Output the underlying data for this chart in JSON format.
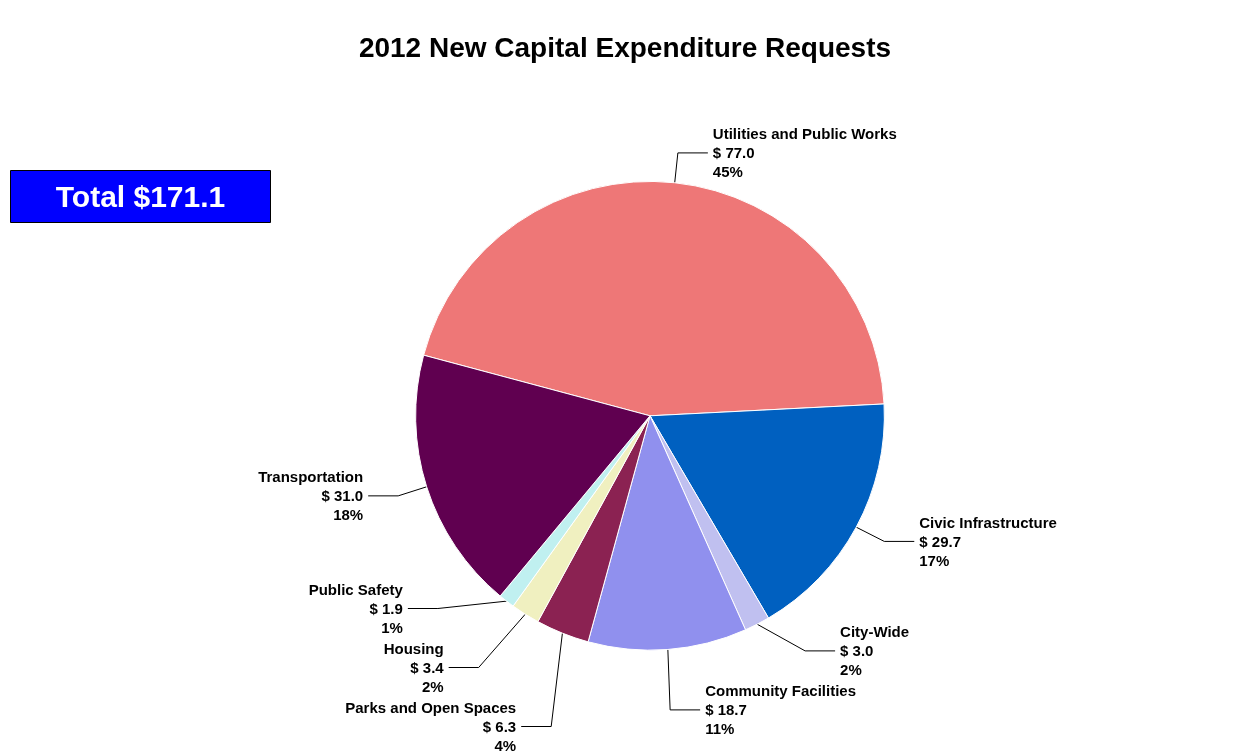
{
  "chart_data": {
    "type": "pie",
    "title": "2012 New Capital Expenditure Requests",
    "categories": [
      "Utilities and Public Works",
      "Civic Infrastructure",
      "City-Wide",
      "Community Facilities",
      "Parks and Open Spaces",
      "Housing",
      "Public Safety",
      "Transportation"
    ],
    "values": [
      77.0,
      29.7,
      3.0,
      18.7,
      6.3,
      3.4,
      1.9,
      31.0
    ],
    "value_labels": [
      "$ 77.0\n45%",
      "$ 29.7\n17%",
      "$ 3.0\n2%",
      "$ 18.7\n11%",
      "$ 6.3\n4%",
      "$ 3.4\n2%",
      "$ 1.9\n1%",
      "$ 31.0\n18%"
    ],
    "colors": [
      "#ee7777",
      "#0060c0",
      "#c0c0f0",
      "#9090ee",
      "#8b2252",
      "#f0f0c0",
      "#c0f0f0",
      "#600050"
    ],
    "annotations": [
      "Total $171.1"
    ],
    "legend": false
  }
}
